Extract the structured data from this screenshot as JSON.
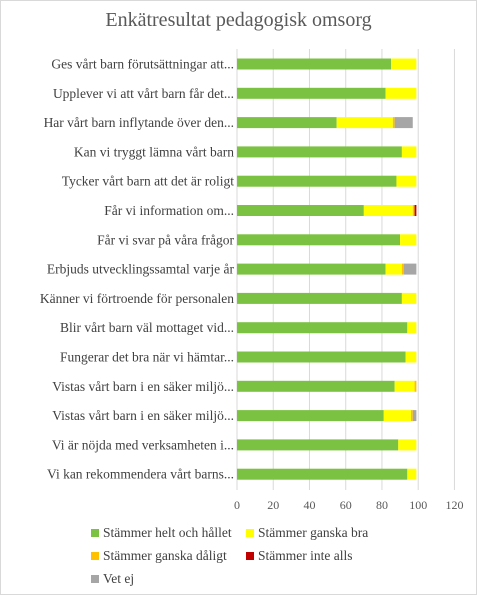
{
  "chart_data": {
    "type": "bar",
    "orientation": "horizontal",
    "stacked": true,
    "title": "Enkätresultat pedagogisk omsorg",
    "categories": [
      "Ges vårt barn förutsättningar att...",
      "Upplever vi att vårt barn får det...",
      "Har vårt barn inflytande över den...",
      "Kan vi tryggt lämna vårt barn",
      "Tycker vårt barn att det är roligt",
      "Får vi information om...",
      "Får vi svar på våra frågor",
      "Erbjuds utvecklingssamtal varje år",
      "Känner vi förtroende för personalen",
      "Blir vårt barn väl mottaget vid...",
      "Fungerar det bra när vi hämtar...",
      "Vistas vårt barn i en säker miljö...",
      "Vistas vårt barn i en säker miljö...",
      "Vi är nöjda med verksamheten i...",
      "Vi kan rekommendera vårt barns..."
    ],
    "series": [
      {
        "name": "Stämmer helt och hållet",
        "color": "#7cc242",
        "values": [
          85,
          82,
          55,
          91,
          88,
          70,
          90,
          82,
          91,
          94,
          93,
          87,
          81,
          89,
          94
        ]
      },
      {
        "name": "Stämmer ganska bra",
        "color": "#ffff00",
        "values": [
          14,
          17,
          31,
          8,
          11,
          27,
          9,
          9,
          8,
          5,
          6,
          11,
          15,
          10,
          5
        ]
      },
      {
        "name": "Stämmer ganska dåligt",
        "color": "#ffc000",
        "values": [
          0,
          0,
          1,
          0,
          0,
          1,
          0,
          1,
          0,
          0,
          0,
          1,
          1,
          0,
          0
        ]
      },
      {
        "name": "Stämmer inte alls",
        "color": "#c00000",
        "values": [
          0,
          0,
          0,
          0,
          0,
          1,
          0,
          0,
          0,
          0,
          0,
          0,
          0,
          0,
          0
        ]
      },
      {
        "name": "Vet ej",
        "color": "#a6a6a6",
        "values": [
          0,
          0,
          10,
          0,
          0,
          0,
          0,
          7,
          0,
          0,
          0,
          0,
          2,
          0,
          0
        ]
      }
    ],
    "x_ticks": [
      0,
      20,
      40,
      60,
      80,
      100,
      120
    ],
    "xlim": [
      0,
      120
    ],
    "grid": true,
    "legend_position": "bottom"
  }
}
